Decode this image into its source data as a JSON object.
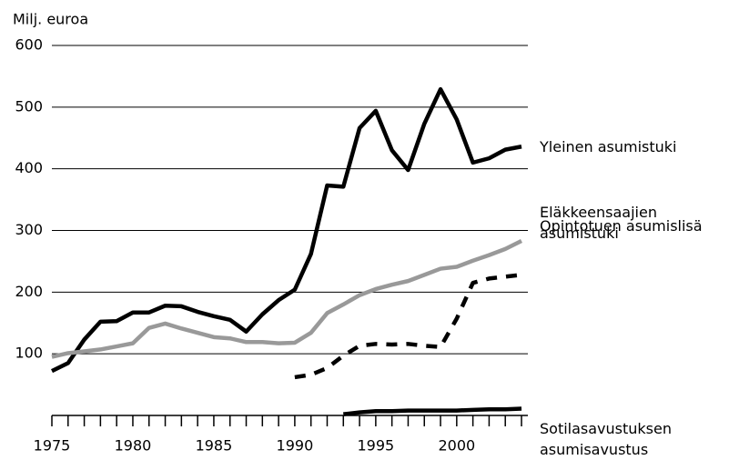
{
  "chart_data": {
    "type": "line",
    "y_label": "Milj. euroa",
    "x": [
      1975,
      1976,
      1977,
      1978,
      1979,
      1980,
      1981,
      1982,
      1983,
      1984,
      1985,
      1986,
      1987,
      1988,
      1989,
      1990,
      1991,
      1992,
      1993,
      1994,
      1995,
      1996,
      1997,
      1998,
      1999,
      2000,
      2001,
      2002,
      2003,
      2004
    ],
    "series": [
      {
        "name": "Yleinen asumistuki",
        "color": "#000000",
        "dashed": false,
        "values": [
          72,
          85,
          123,
          152,
          153,
          167,
          167,
          178,
          177,
          168,
          161,
          155,
          136,
          164,
          187,
          204,
          262,
          373,
          371,
          466,
          494,
          430,
          398,
          473,
          529,
          480,
          410,
          417,
          431,
          436
        ]
      },
      {
        "name": "Eläkkeensaajien asumistuki",
        "color": "#999999",
        "dashed": false,
        "values": [
          95,
          101,
          104,
          107,
          112,
          117,
          142,
          149,
          141,
          134,
          127,
          125,
          119,
          119,
          117,
          118,
          134,
          166,
          180,
          195,
          205,
          212,
          218,
          228,
          238,
          241,
          251,
          260,
          270,
          283
        ]
      },
      {
        "name": "Opintotuen asumislisä",
        "color": "#000000",
        "dashed": true,
        "values": [
          null,
          null,
          null,
          null,
          null,
          null,
          null,
          null,
          null,
          null,
          null,
          null,
          null,
          null,
          null,
          62,
          66,
          77,
          97,
          113,
          116,
          115,
          116,
          113,
          111,
          157,
          215,
          222,
          225,
          228
        ]
      },
      {
        "name": "Sotilasavustuksen asumisavustus",
        "color": "#000000",
        "dashed": false,
        "values": [
          null,
          null,
          null,
          null,
          null,
          null,
          null,
          null,
          null,
          null,
          null,
          null,
          null,
          null,
          null,
          null,
          null,
          null,
          2,
          5,
          7,
          7,
          8,
          8,
          8,
          8,
          9,
          10,
          10,
          11
        ]
      }
    ],
    "xlim": [
      1975,
      2004
    ],
    "xticks": [
      1975,
      1980,
      1985,
      1990,
      1995,
      2000
    ],
    "xticks_minor": [
      1975,
      1976,
      1977,
      1978,
      1979,
      1980,
      1981,
      1982,
      1983,
      1984,
      1985,
      1986,
      1987,
      1988,
      1989,
      1990,
      1991,
      1992,
      1993,
      1994,
      1995,
      1996,
      1997,
      1998,
      1999,
      2000,
      2001,
      2002,
      2003,
      2004
    ],
    "ylim": [
      0,
      600
    ],
    "yticks": [
      100,
      200,
      300,
      400,
      500,
      600
    ],
    "grid": true
  }
}
